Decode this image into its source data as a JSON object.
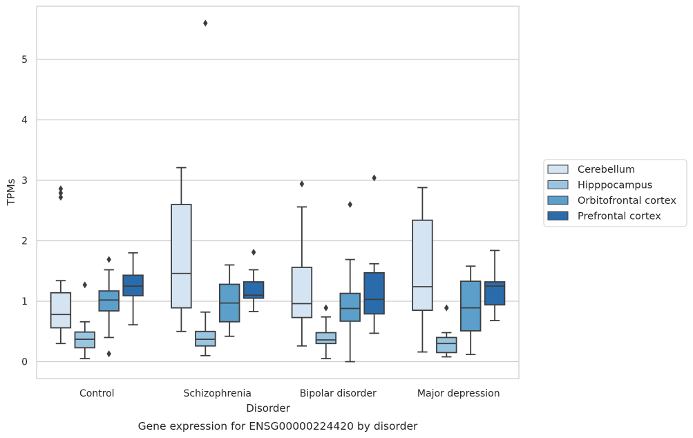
{
  "chart_data": {
    "type": "box",
    "title": "Gene expression for ENSG00000224420 by disorder",
    "xlabel": "Disorder",
    "ylabel": "TPMs",
    "ylim": [
      -0.28,
      5.88
    ],
    "yticks": [
      0,
      1,
      2,
      3,
      4,
      5
    ],
    "grid": true,
    "legend_position": "right",
    "categories": [
      "Control",
      "Schizophrenia",
      "Bipolar disorder",
      "Major depression"
    ],
    "series": [
      {
        "name": "Cerebellum",
        "color": "#d5e4f2",
        "boxes": [
          {
            "whisker_low": 0.3,
            "q1": 0.56,
            "median": 0.78,
            "q3": 1.14,
            "whisker_high": 1.34,
            "outliers": [
              2.72,
              2.79,
              2.86
            ]
          },
          {
            "whisker_low": 0.5,
            "q1": 0.89,
            "median": 1.46,
            "q3": 2.6,
            "whisker_high": 3.21,
            "outliers": []
          },
          {
            "whisker_low": 0.26,
            "q1": 0.73,
            "median": 0.96,
            "q3": 1.56,
            "whisker_high": 2.56,
            "outliers": [
              2.94
            ]
          },
          {
            "whisker_low": 0.16,
            "q1": 0.85,
            "median": 1.24,
            "q3": 2.34,
            "whisker_high": 2.88,
            "outliers": []
          }
        ]
      },
      {
        "name": "Hipppocampus",
        "color": "#9ac5e0",
        "boxes": [
          {
            "whisker_low": 0.05,
            "q1": 0.23,
            "median": 0.37,
            "q3": 0.49,
            "whisker_high": 0.66,
            "outliers": [
              1.27
            ]
          },
          {
            "whisker_low": 0.1,
            "q1": 0.26,
            "median": 0.37,
            "q3": 0.5,
            "whisker_high": 0.82,
            "outliers": [
              5.6
            ]
          },
          {
            "whisker_low": 0.05,
            "q1": 0.3,
            "median": 0.36,
            "q3": 0.48,
            "whisker_high": 0.74,
            "outliers": [
              0.89
            ]
          },
          {
            "whisker_low": 0.08,
            "q1": 0.15,
            "median": 0.3,
            "q3": 0.4,
            "whisker_high": 0.48,
            "outliers": [
              0.89
            ]
          }
        ]
      },
      {
        "name": "Orbitofrontal cortex",
        "color": "#5c9fcb",
        "boxes": [
          {
            "whisker_low": 0.4,
            "q1": 0.84,
            "median": 1.02,
            "q3": 1.17,
            "whisker_high": 1.52,
            "outliers": [
              0.13,
              1.69
            ]
          },
          {
            "whisker_low": 0.42,
            "q1": 0.66,
            "median": 0.97,
            "q3": 1.28,
            "whisker_high": 1.6,
            "outliers": []
          },
          {
            "whisker_low": 0.0,
            "q1": 0.67,
            "median": 0.88,
            "q3": 1.13,
            "whisker_high": 1.69,
            "outliers": [
              2.6
            ]
          },
          {
            "whisker_low": 0.12,
            "q1": 0.51,
            "median": 0.89,
            "q3": 1.33,
            "whisker_high": 1.58,
            "outliers": []
          }
        ]
      },
      {
        "name": "Prefrontal cortex",
        "color": "#2a6cab",
        "boxes": [
          {
            "whisker_low": 0.61,
            "q1": 1.09,
            "median": 1.25,
            "q3": 1.43,
            "whisker_high": 1.8,
            "outliers": []
          },
          {
            "whisker_low": 0.83,
            "q1": 1.05,
            "median": 1.1,
            "q3": 1.32,
            "whisker_high": 1.52,
            "outliers": [
              1.81
            ]
          },
          {
            "whisker_low": 0.47,
            "q1": 0.79,
            "median": 1.03,
            "q3": 1.47,
            "whisker_high": 1.62,
            "outliers": [
              3.04
            ]
          },
          {
            "whisker_low": 0.68,
            "q1": 0.94,
            "median": 1.25,
            "q3": 1.32,
            "whisker_high": 1.84,
            "outliers": []
          }
        ]
      }
    ]
  }
}
